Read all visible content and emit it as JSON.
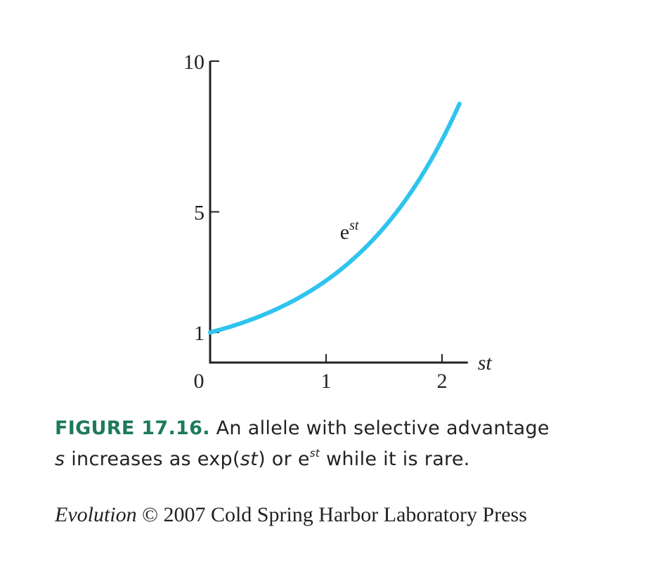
{
  "chart_data": {
    "type": "line",
    "function": "exp(st)",
    "x_name": "st",
    "curve_label_base": "e",
    "curve_label_exp": "st",
    "xlim": [
      0,
      2.15
    ],
    "ylim": [
      0,
      10
    ],
    "x_ticks": [
      {
        "value": 0,
        "label": "0"
      },
      {
        "value": 1,
        "label": "1"
      },
      {
        "value": 2,
        "label": "2"
      }
    ],
    "y_ticks": [
      {
        "value": 1,
        "label": "1"
      },
      {
        "value": 5,
        "label": "5"
      },
      {
        "value": 10,
        "label": "10"
      }
    ],
    "series": [
      {
        "color": "#2ec4ee",
        "x": [
          0,
          0.25,
          0.5,
          0.75,
          1.0,
          1.25,
          1.5,
          1.75,
          2.0,
          2.15
        ],
        "y": [
          1.0,
          1.28,
          1.65,
          2.12,
          2.72,
          3.49,
          4.48,
          5.75,
          7.39,
          8.58
        ]
      }
    ],
    "grid": false
  },
  "caption": {
    "label": "FIGURE 17.16.",
    "line1_rest": " An allele with selective advantage",
    "line2_var": "s",
    "line2_a": " increases as exp(",
    "line2_st": "st",
    "line2_b": ") or e",
    "line2_sup": "st",
    "line2_c": " while it is rare."
  },
  "credit": {
    "title": "Evolution",
    "rest": " © 2007 Cold Spring Harbor Laboratory Press"
  },
  "colors": {
    "curve": "#2ec4ee",
    "label_green": "#1e7a5a",
    "axis": "#222222"
  }
}
